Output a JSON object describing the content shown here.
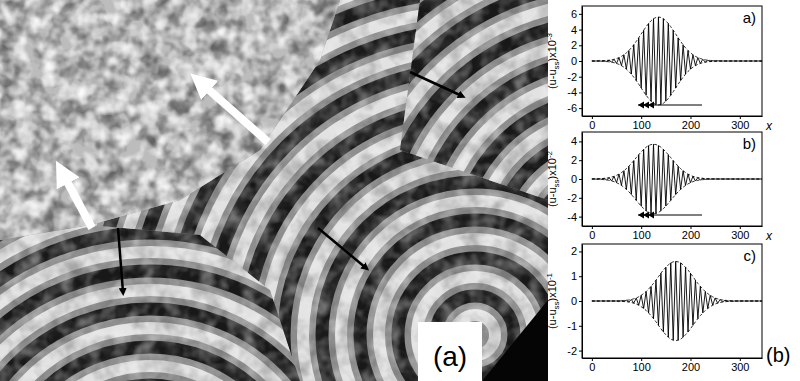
{
  "image_label": "(a)",
  "charts_label": "(b)",
  "chart_data": [
    {
      "type": "line",
      "title": "a)",
      "xlabel": "x",
      "ylabel": [
        "(u-u",
        "ss",
        ")x10",
        "-3"
      ],
      "x": [
        0,
        5,
        10,
        15,
        20,
        25,
        30,
        35,
        40,
        45,
        50,
        55,
        60,
        65,
        70,
        75,
        80,
        85,
        90,
        95,
        100,
        105,
        110,
        115,
        120,
        125,
        130,
        135,
        140,
        145,
        150,
        155,
        160,
        165,
        170,
        175,
        180,
        185,
        190,
        195,
        200,
        205,
        210,
        215,
        220,
        225,
        230,
        235,
        240,
        245,
        250,
        255,
        260,
        265,
        270,
        275,
        280,
        285,
        290,
        295,
        300,
        305,
        310,
        315,
        320,
        325,
        330,
        335,
        340,
        345
      ],
      "xlim": [
        -20,
        345
      ],
      "ylim": [
        -7,
        7
      ],
      "xticks": [
        0,
        100,
        200,
        300
      ],
      "yticks": [
        -6,
        -4,
        -2,
        0,
        2,
        4,
        6
      ],
      "series": [
        {
          "color": "#000000",
          "line_style": "solid",
          "values": [
            0,
            0,
            0,
            0.02,
            -0.03,
            0.04,
            -0.07,
            0.1,
            -0.15,
            0.22,
            -0.31,
            0.43,
            -0.59,
            0.79,
            -1.04,
            1.33,
            -1.67,
            2.06,
            -2.49,
            2.95,
            -3.43,
            3.91,
            -4.36,
            4.77,
            -5.12,
            5.38,
            -5.54,
            5.6,
            -5.54,
            5.38,
            -5.12,
            4.77,
            -4.36,
            3.91,
            -3.43,
            2.95,
            -2.49,
            2.06,
            -1.67,
            1.33,
            -1.04,
            0.79,
            -0.59,
            0.43,
            -0.31,
            0.22,
            -0.15,
            0.1,
            -0.07,
            0.04,
            -0.03,
            0.02,
            0,
            0,
            0,
            0,
            0,
            0,
            0,
            0,
            0,
            0,
            0,
            0,
            0,
            0,
            0,
            0,
            0,
            0
          ]
        },
        {
          "color": "#000000",
          "line_style": "dashed",
          "values": [
            0,
            0,
            0,
            0.02,
            0.03,
            0.04,
            0.07,
            0.1,
            0.15,
            0.22,
            0.31,
            0.43,
            0.59,
            0.79,
            1.04,
            1.33,
            1.67,
            2.06,
            2.49,
            2.95,
            3.43,
            3.91,
            4.36,
            4.77,
            5.12,
            5.38,
            5.54,
            5.6,
            5.54,
            5.38,
            5.12,
            4.77,
            4.36,
            3.91,
            3.43,
            2.95,
            2.49,
            2.06,
            1.67,
            1.33,
            1.04,
            0.79,
            0.59,
            0.43,
            0.31,
            0.22,
            0.15,
            0.1,
            0.07,
            0.04,
            0.03,
            0.02,
            0,
            0,
            0,
            0,
            0,
            0,
            0,
            0,
            0,
            0,
            0,
            0,
            0,
            0,
            0,
            0,
            0,
            0
          ]
        },
        {
          "color": "#000000",
          "line_style": "dashed",
          "values": [
            0,
            0,
            0,
            -0.02,
            -0.03,
            -0.04,
            -0.07,
            -0.1,
            -0.15,
            -0.22,
            -0.31,
            -0.43,
            -0.59,
            -0.79,
            -1.04,
            -1.33,
            -1.67,
            -2.06,
            -2.49,
            -2.95,
            -3.43,
            -3.91,
            -4.36,
            -4.77,
            -5.12,
            -5.38,
            -5.54,
            -5.6,
            -5.54,
            -5.38,
            -5.12,
            -4.77,
            -4.36,
            -3.91,
            -3.43,
            -2.95,
            -2.49,
            -2.06,
            -1.67,
            -1.33,
            -1.04,
            -0.79,
            -0.59,
            -0.43,
            -0.31,
            -0.22,
            -0.15,
            -0.1,
            -0.07,
            -0.04,
            -0.03,
            -0.02,
            0,
            0,
            0,
            0,
            0,
            0,
            0,
            0,
            0,
            0,
            0,
            0,
            0,
            0,
            0,
            0,
            0,
            0
          ]
        }
      ]
    },
    {
      "type": "line",
      "title": "b)",
      "xlabel": "x",
      "ylabel": [
        "(u-u",
        "ss",
        ")x10",
        "-2"
      ],
      "x": [
        0,
        5,
        10,
        15,
        20,
        25,
        30,
        35,
        40,
        45,
        50,
        55,
        60,
        65,
        70,
        75,
        80,
        85,
        90,
        95,
        100,
        105,
        110,
        115,
        120,
        125,
        130,
        135,
        140,
        145,
        150,
        155,
        160,
        165,
        170,
        175,
        180,
        185,
        190,
        195,
        200,
        205,
        210,
        215,
        220,
        225,
        230,
        235,
        240,
        245,
        250,
        255,
        260,
        265,
        270,
        275,
        280,
        285,
        290,
        295,
        300,
        305,
        310,
        315,
        320,
        325,
        330,
        335,
        340,
        345
      ],
      "xlim": [
        -20,
        345
      ],
      "ylim": [
        -5,
        5
      ],
      "xticks": [
        0,
        100,
        200,
        300
      ],
      "yticks": [
        -4,
        -2,
        0,
        2,
        4
      ],
      "series": [
        {
          "color": "#000000",
          "line_style": "solid",
          "values": [
            0,
            0.01,
            -0.02,
            0.03,
            -0.04,
            0.07,
            -0.1,
            0.14,
            -0.21,
            0.28,
            -0.39,
            0.52,
            -0.68,
            0.88,
            -1.1,
            1.36,
            -1.65,
            1.95,
            -2.27,
            2.58,
            -2.88,
            3.15,
            -3.38,
            3.56,
            -3.66,
            3.7,
            -3.66,
            3.56,
            -3.38,
            3.15,
            -2.88,
            2.58,
            -2.27,
            1.95,
            -1.65,
            1.36,
            -1.1,
            0.88,
            -0.68,
            0.52,
            -0.39,
            0.28,
            -0.21,
            0.14,
            -0.1,
            0.07,
            -0.04,
            0.03,
            -0.02,
            0.01,
            0,
            0,
            0,
            0,
            0,
            0,
            0,
            0,
            0,
            0,
            0,
            0,
            0,
            0,
            0,
            0,
            0,
            0,
            0,
            0
          ]
        },
        {
          "color": "#000000",
          "line_style": "dashed",
          "values": [
            0,
            0.01,
            0.02,
            0.03,
            0.04,
            0.07,
            0.1,
            0.14,
            0.21,
            0.28,
            0.39,
            0.52,
            0.68,
            0.88,
            1.1,
            1.36,
            1.65,
            1.95,
            2.27,
            2.58,
            2.88,
            3.15,
            3.38,
            3.56,
            3.66,
            3.7,
            3.66,
            3.56,
            3.38,
            3.15,
            2.88,
            2.58,
            2.27,
            1.95,
            1.65,
            1.36,
            1.1,
            0.88,
            0.68,
            0.52,
            0.39,
            0.28,
            0.21,
            0.14,
            0.1,
            0.07,
            0.04,
            0.03,
            0.02,
            0.01,
            0,
            0,
            0,
            0,
            0,
            0,
            0,
            0,
            0,
            0,
            0,
            0,
            0,
            0,
            0,
            0,
            0,
            0,
            0,
            0
          ]
        },
        {
          "color": "#000000",
          "line_style": "dashed",
          "values": [
            0,
            -0.01,
            -0.02,
            -0.03,
            -0.04,
            -0.07,
            -0.1,
            -0.14,
            -0.21,
            -0.28,
            -0.39,
            -0.52,
            -0.68,
            -0.88,
            -1.1,
            -1.36,
            -1.65,
            -1.95,
            -2.27,
            -2.58,
            -2.88,
            -3.15,
            -3.38,
            -3.56,
            -3.66,
            -3.7,
            -3.66,
            -3.56,
            -3.38,
            -3.15,
            -2.88,
            -2.58,
            -2.27,
            -1.95,
            -1.65,
            -1.36,
            -1.1,
            -0.88,
            -0.68,
            -0.52,
            -0.39,
            -0.28,
            -0.21,
            -0.14,
            -0.1,
            -0.07,
            -0.04,
            -0.03,
            -0.02,
            -0.01,
            0,
            0,
            0,
            0,
            0,
            0,
            0,
            0,
            0,
            0,
            0,
            0,
            0,
            0,
            0,
            0,
            0,
            0,
            0,
            0
          ]
        }
      ]
    },
    {
      "type": "line",
      "title": "c)",
      "ylabel": [
        "(u-u",
        "ss",
        ")x10",
        "-1"
      ],
      "x": [
        0,
        5,
        10,
        15,
        20,
        25,
        30,
        35,
        40,
        45,
        50,
        55,
        60,
        65,
        70,
        75,
        80,
        85,
        90,
        95,
        100,
        105,
        110,
        115,
        120,
        125,
        130,
        135,
        140,
        145,
        150,
        155,
        160,
        165,
        170,
        175,
        180,
        185,
        190,
        195,
        200,
        205,
        210,
        215,
        220,
        225,
        230,
        235,
        240,
        245,
        250,
        255,
        260,
        265,
        270,
        275,
        280,
        285,
        290,
        295,
        300,
        305,
        310,
        315,
        320,
        325,
        330,
        335,
        340,
        345
      ],
      "xlim": [
        -20,
        345
      ],
      "ylim": [
        -2.3,
        2.3
      ],
      "xticks": [
        0,
        100,
        200,
        300
      ],
      "yticks": [
        -2,
        -1,
        0,
        1,
        2
      ],
      "series": [
        {
          "color": "#000000",
          "line_style": "solid",
          "values": [
            0,
            0,
            0,
            0,
            0,
            0,
            0,
            0,
            0,
            0,
            0,
            -0.01,
            0.01,
            -0.02,
            0.03,
            -0.04,
            0.06,
            -0.09,
            0.12,
            -0.17,
            0.23,
            -0.3,
            0.38,
            -0.48,
            0.59,
            -0.71,
            0.84,
            -0.98,
            1.12,
            -1.25,
            1.36,
            -1.46,
            1.54,
            -1.58,
            1.6,
            -1.58,
            1.54,
            -1.46,
            1.36,
            -1.25,
            1.12,
            -0.98,
            0.84,
            -0.71,
            0.59,
            -0.48,
            0.38,
            -0.3,
            0.23,
            -0.17,
            0.12,
            -0.09,
            0.06,
            -0.04,
            0.03,
            -0.02,
            0.01,
            -0.01,
            0,
            0,
            0,
            0,
            0,
            0,
            0,
            0,
            0,
            0,
            0,
            0
          ]
        },
        {
          "color": "#000000",
          "line_style": "dashed",
          "values": [
            0,
            0,
            0,
            0,
            0,
            0,
            0,
            0,
            0,
            0,
            0,
            0.01,
            0.01,
            0.02,
            0.03,
            0.04,
            0.06,
            0.09,
            0.12,
            0.17,
            0.23,
            0.3,
            0.38,
            0.48,
            0.59,
            0.71,
            0.84,
            0.98,
            1.12,
            1.25,
            1.36,
            1.46,
            1.54,
            1.58,
            1.6,
            1.58,
            1.54,
            1.46,
            1.36,
            1.25,
            1.12,
            0.98,
            0.84,
            0.71,
            0.59,
            0.48,
            0.38,
            0.3,
            0.23,
            0.17,
            0.12,
            0.09,
            0.06,
            0.04,
            0.03,
            0.02,
            0.01,
            0.01,
            0,
            0,
            0,
            0,
            0,
            0,
            0,
            0,
            0,
            0,
            0,
            0
          ]
        },
        {
          "color": "#000000",
          "line_style": "dashed",
          "values": [
            0,
            0,
            0,
            0,
            0,
            0,
            0,
            0,
            0,
            0,
            0,
            -0.01,
            -0.01,
            -0.02,
            -0.03,
            -0.04,
            -0.06,
            -0.09,
            -0.12,
            -0.17,
            -0.23,
            -0.3,
            -0.38,
            -0.48,
            -0.59,
            -0.71,
            -0.84,
            -0.98,
            -1.12,
            -1.25,
            -1.36,
            -1.46,
            -1.54,
            -1.58,
            -1.6,
            -1.58,
            -1.54,
            -1.46,
            -1.36,
            -1.25,
            -1.12,
            -0.98,
            -0.84,
            -0.71,
            -0.59,
            -0.48,
            -0.38,
            -0.3,
            -0.23,
            -0.17,
            -0.12,
            -0.09,
            -0.06,
            -0.04,
            -0.03,
            -0.02,
            -0.01,
            -0.01,
            0,
            0,
            0,
            0,
            0,
            0,
            0,
            0,
            0,
            0,
            0,
            0
          ]
        }
      ]
    }
  ]
}
